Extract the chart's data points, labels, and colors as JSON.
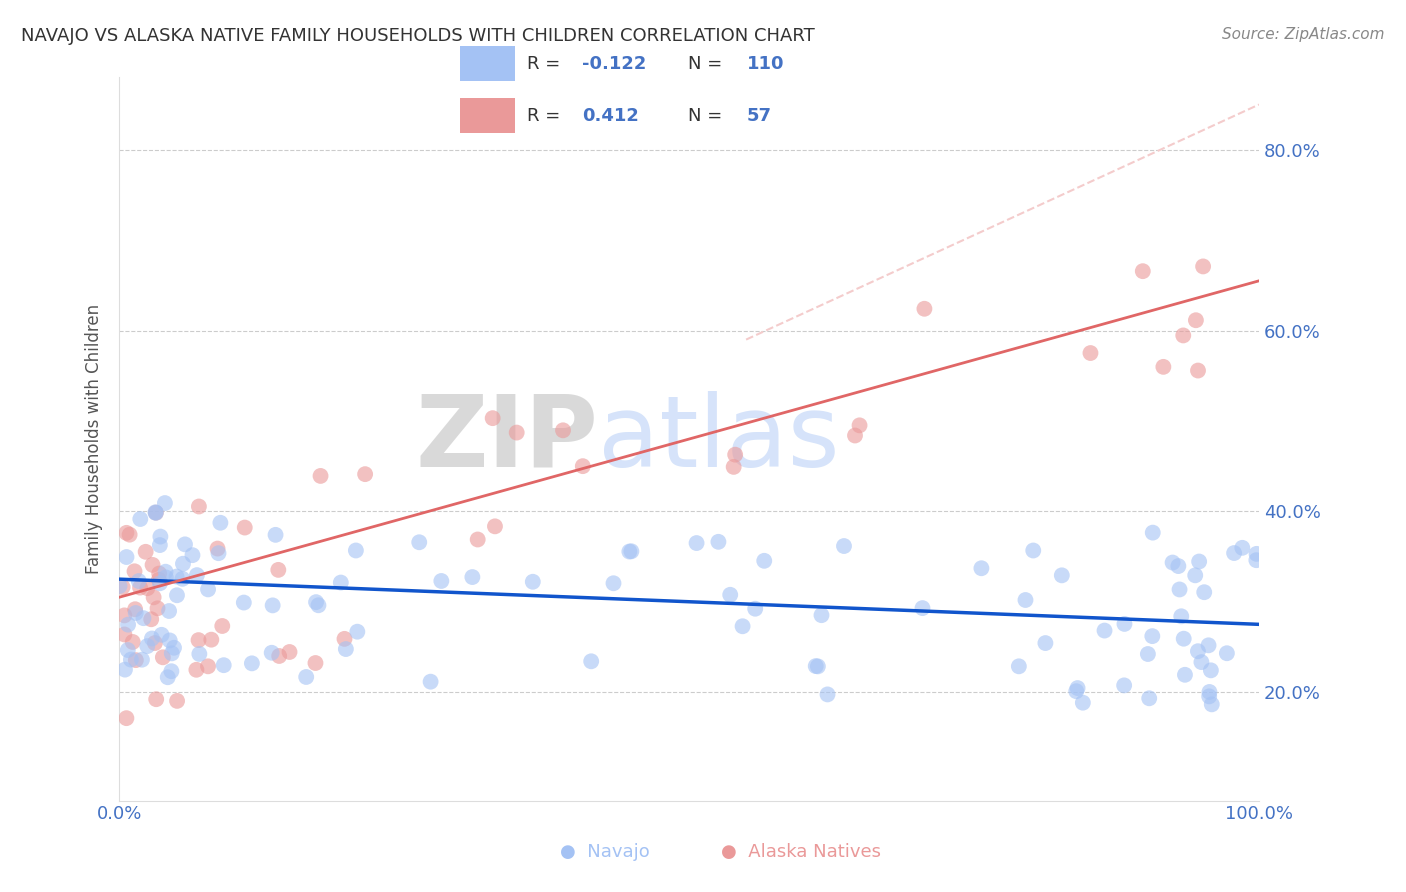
{
  "title": "NAVAJO VS ALASKA NATIVE FAMILY HOUSEHOLDS WITH CHILDREN CORRELATION CHART",
  "source": "Source: ZipAtlas.com",
  "ylabel": "Family Households with Children",
  "xlabel": "",
  "xlim": [
    0.0,
    1.0
  ],
  "ylim": [
    0.08,
    0.88
  ],
  "yticks": [
    0.2,
    0.4,
    0.6,
    0.8
  ],
  "xticks": [
    0.0,
    1.0
  ],
  "xtick_labels": [
    "0.0%",
    "100.0%"
  ],
  "navajo_color": "#a4c2f4",
  "alaska_color": "#ea9999",
  "navajo_line_color": "#1155cc",
  "alaska_line_color": "#e06666",
  "dashed_line_color": "#f4cccc",
  "legend_navajo_R": "-0.122",
  "legend_navajo_N": "110",
  "legend_alaska_R": "0.412",
  "legend_alaska_N": "57",
  "watermark_zip": "ZIP",
  "watermark_atlas": "atlas",
  "background_color": "#ffffff",
  "grid_color": "#cccccc",
  "nav_seed": 10,
  "alaska_seed": 20
}
